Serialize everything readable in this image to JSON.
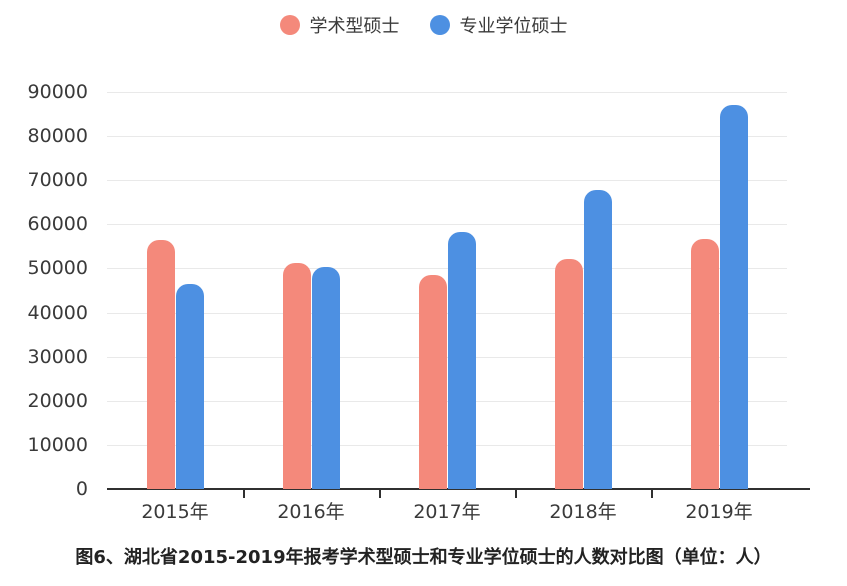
{
  "legend": {
    "items": [
      {
        "key": "academic",
        "label": "学术型硕士",
        "color": "#F4897B"
      },
      {
        "key": "professional",
        "label": "专业学位硕士",
        "color": "#4D90E2"
      }
    ]
  },
  "caption": "图6、湖北省2015-2019年报考学术型硕士和专业学位硕士的人数对比图（单位：人）",
  "chart_data": {
    "type": "bar",
    "title": "图6、湖北省2015-2019年报考学术型硕士和专业学位硕士的人数对比图（单位：人）",
    "categories": [
      "2015年",
      "2016年",
      "2017年",
      "2018年",
      "2019年"
    ],
    "series": [
      {
        "key": "academic",
        "name": "学术型硕士",
        "color": "#F4897B",
        "values": [
          56400,
          51200,
          48600,
          52200,
          56600
        ]
      },
      {
        "key": "professional",
        "name": "专业学位硕士",
        "color": "#4D90E2",
        "values": [
          46400,
          50400,
          58200,
          67800,
          87100
        ]
      }
    ],
    "xlabel": "",
    "ylabel": "",
    "ylim": [
      0,
      90000
    ],
    "ytick_step": 10000,
    "grid": true,
    "legend_position": "top",
    "colors": {
      "grid": "#E9E9E9",
      "axis": "#303030",
      "text": "#3A3A3A",
      "background": "#FFFFFF"
    }
  }
}
